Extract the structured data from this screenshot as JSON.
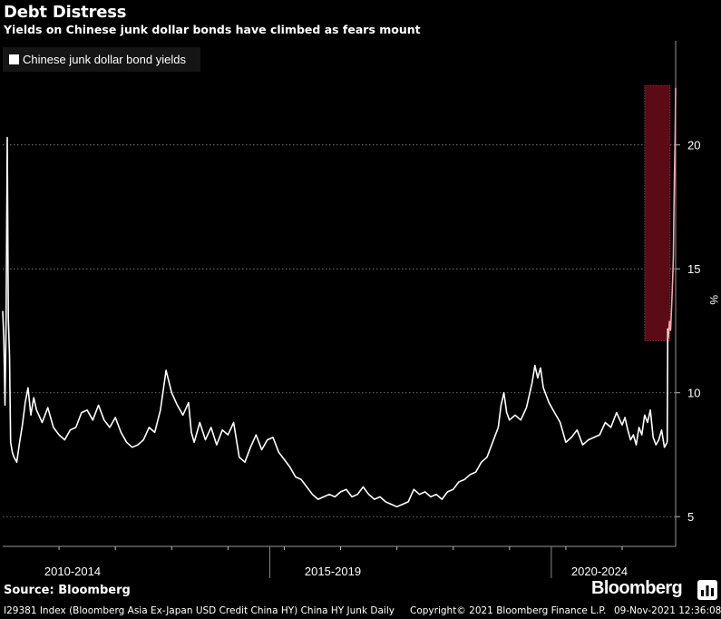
{
  "header": {
    "title": "Debt Distress",
    "subtitle": "Yields on Chinese junk dollar bonds have climbed as fears mount"
  },
  "colors": {
    "background": "#000000",
    "line": "#ffffff",
    "highlight_fill": "#5a0b15",
    "highlight_border": "#b33a4a",
    "highlight_line": "#f2a9b0"
  },
  "chart_data": {
    "type": "line",
    "title": "Debt Distress",
    "subtitle": "Yields on Chinese junk dollar bonds have climbed as fears mount",
    "ylabel": "%",
    "ylim": [
      3.8,
      24.2
    ],
    "yticks": [
      5,
      10,
      15,
      20
    ],
    "y_axis_position": "right",
    "grid": "dotted horizontal",
    "legend_position": "top-left",
    "x_tick_labels": [
      "2010-2014",
      "2015-2019",
      "2020-2024"
    ],
    "highlight": {
      "start_year": 2021.4,
      "end_year": 2021.85,
      "y_range": [
        12.1,
        22.4
      ]
    },
    "series": [
      {
        "name": "Chinese junk dollar bond yields",
        "points": [
          [
            2010.0,
            13.3
          ],
          [
            2010.02,
            12.2
          ],
          [
            2010.04,
            9.5
          ],
          [
            2010.06,
            12.8
          ],
          [
            2010.08,
            20.3
          ],
          [
            2010.1,
            13.0
          ],
          [
            2010.12,
            11.5
          ],
          [
            2010.14,
            8.0
          ],
          [
            2010.17,
            7.6
          ],
          [
            2010.2,
            7.4
          ],
          [
            2010.25,
            7.2
          ],
          [
            2010.3,
            8.0
          ],
          [
            2010.35,
            8.7
          ],
          [
            2010.4,
            9.6
          ],
          [
            2010.45,
            10.2
          ],
          [
            2010.5,
            9.1
          ],
          [
            2010.55,
            9.8
          ],
          [
            2010.6,
            9.3
          ],
          [
            2010.7,
            8.8
          ],
          [
            2010.8,
            9.4
          ],
          [
            2010.9,
            8.6
          ],
          [
            2011.0,
            8.3
          ],
          [
            2011.1,
            8.1
          ],
          [
            2011.2,
            8.5
          ],
          [
            2011.3,
            8.6
          ],
          [
            2011.4,
            9.2
          ],
          [
            2011.5,
            9.3
          ],
          [
            2011.6,
            8.9
          ],
          [
            2011.7,
            9.5
          ],
          [
            2011.8,
            8.9
          ],
          [
            2011.9,
            8.6
          ],
          [
            2012.0,
            9.0
          ],
          [
            2012.1,
            8.4
          ],
          [
            2012.2,
            8.0
          ],
          [
            2012.3,
            7.8
          ],
          [
            2012.4,
            7.9
          ],
          [
            2012.5,
            8.1
          ],
          [
            2012.6,
            8.6
          ],
          [
            2012.7,
            8.4
          ],
          [
            2012.8,
            9.3
          ],
          [
            2012.9,
            10.9
          ],
          [
            2013.0,
            10.0
          ],
          [
            2013.1,
            9.5
          ],
          [
            2013.2,
            9.1
          ],
          [
            2013.3,
            9.6
          ],
          [
            2013.35,
            8.4
          ],
          [
            2013.4,
            8.0
          ],
          [
            2013.5,
            8.8
          ],
          [
            2013.6,
            8.1
          ],
          [
            2013.7,
            8.6
          ],
          [
            2013.8,
            7.9
          ],
          [
            2013.9,
            8.5
          ],
          [
            2014.0,
            8.3
          ],
          [
            2014.1,
            8.8
          ],
          [
            2014.2,
            7.4
          ],
          [
            2014.3,
            7.2
          ],
          [
            2014.4,
            7.8
          ],
          [
            2014.5,
            8.3
          ],
          [
            2014.6,
            7.7
          ],
          [
            2014.7,
            8.1
          ],
          [
            2014.8,
            8.2
          ],
          [
            2014.9,
            7.6
          ],
          [
            2015.0,
            7.3
          ],
          [
            2015.1,
            7.0
          ],
          [
            2015.2,
            6.6
          ],
          [
            2015.3,
            6.5
          ],
          [
            2015.4,
            6.2
          ],
          [
            2015.5,
            5.9
          ],
          [
            2015.6,
            5.7
          ],
          [
            2015.7,
            5.8
          ],
          [
            2015.8,
            5.9
          ],
          [
            2015.9,
            5.8
          ],
          [
            2016.0,
            6.0
          ],
          [
            2016.1,
            6.1
          ],
          [
            2016.2,
            5.8
          ],
          [
            2016.3,
            5.9
          ],
          [
            2016.4,
            6.2
          ],
          [
            2016.5,
            5.9
          ],
          [
            2016.6,
            5.7
          ],
          [
            2016.7,
            5.8
          ],
          [
            2016.8,
            5.6
          ],
          [
            2016.9,
            5.5
          ],
          [
            2017.0,
            5.4
          ],
          [
            2017.1,
            5.5
          ],
          [
            2017.2,
            5.6
          ],
          [
            2017.3,
            6.1
          ],
          [
            2017.4,
            5.9
          ],
          [
            2017.5,
            6.0
          ],
          [
            2017.6,
            5.8
          ],
          [
            2017.7,
            5.9
          ],
          [
            2017.8,
            5.7
          ],
          [
            2017.9,
            6.0
          ],
          [
            2018.0,
            6.1
          ],
          [
            2018.1,
            6.4
          ],
          [
            2018.2,
            6.5
          ],
          [
            2018.3,
            6.7
          ],
          [
            2018.4,
            6.8
          ],
          [
            2018.5,
            7.2
          ],
          [
            2018.6,
            7.4
          ],
          [
            2018.7,
            8.0
          ],
          [
            2018.8,
            8.6
          ],
          [
            2018.85,
            9.5
          ],
          [
            2018.9,
            10.0
          ],
          [
            2018.95,
            9.2
          ],
          [
            2019.0,
            8.9
          ],
          [
            2019.1,
            9.1
          ],
          [
            2019.2,
            8.9
          ],
          [
            2019.3,
            9.4
          ],
          [
            2019.4,
            10.4
          ],
          [
            2019.45,
            11.1
          ],
          [
            2019.5,
            10.6
          ],
          [
            2019.55,
            11.0
          ],
          [
            2019.6,
            10.2
          ],
          [
            2019.7,
            9.6
          ],
          [
            2019.8,
            9.2
          ],
          [
            2019.9,
            8.8
          ],
          [
            2020.0,
            8.0
          ],
          [
            2020.1,
            8.2
          ],
          [
            2020.2,
            8.5
          ],
          [
            2020.3,
            7.9
          ],
          [
            2020.4,
            8.1
          ],
          [
            2020.5,
            8.2
          ],
          [
            2020.6,
            8.3
          ],
          [
            2020.7,
            8.8
          ],
          [
            2020.8,
            8.6
          ],
          [
            2020.9,
            9.2
          ],
          [
            2021.0,
            8.7
          ],
          [
            2021.05,
            9.0
          ],
          [
            2021.1,
            8.5
          ],
          [
            2021.15,
            8.1
          ],
          [
            2021.2,
            8.3
          ],
          [
            2021.25,
            7.9
          ],
          [
            2021.3,
            8.6
          ],
          [
            2021.35,
            8.3
          ],
          [
            2021.4,
            9.1
          ],
          [
            2021.45,
            8.8
          ],
          [
            2021.5,
            9.3
          ],
          [
            2021.55,
            8.2
          ],
          [
            2021.6,
            7.9
          ],
          [
            2021.65,
            8.1
          ],
          [
            2021.7,
            8.5
          ],
          [
            2021.75,
            7.8
          ],
          [
            2021.8,
            8.0
          ]
        ]
      }
    ]
  },
  "source": "Source: Bloomberg",
  "brand": "Bloomberg",
  "footer": {
    "index": "I29381 Index (Bloomberg Asia Ex-Japan USD Credit China HY) China HY Junk  Daily",
    "copyright": "Copyright© 2021 Bloomberg Finance L.P.",
    "timestamp": "09-Nov-2021 12:36:08"
  }
}
